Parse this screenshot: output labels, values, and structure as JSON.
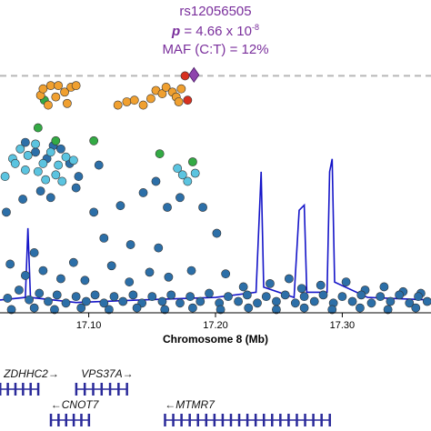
{
  "chart_data": {
    "type": "scatter",
    "title": "",
    "annotation": {
      "snp": "rs12056505",
      "p_label": "p",
      "p_value": "= 4.66 x 10",
      "p_exponent": "-8",
      "maf": "MAF (C:T) = 12%"
    },
    "xlabel": "Chromosome 8 (Mb)",
    "xlim": [
      17.03,
      17.37
    ],
    "xticks": [
      17.1,
      17.2,
      17.3
    ],
    "xtick_labels": [
      "17.10",
      "17.20",
      "17.30"
    ],
    "ylim_neglog10p": [
      0,
      7.9
    ],
    "significance_line_neglog10p": 7.3,
    "colors": {
      "lead": "#8e44ad",
      "red": "#d7301f",
      "orange": "#f0a030",
      "green": "#33aa44",
      "lightblue": "#5bc4e0",
      "darkblue": "#2c6fa8",
      "recomb": "#1515c8",
      "sigline": "#b8b8b8",
      "gene": "#2a2a9a"
    },
    "lead_snp": {
      "x": 17.183,
      "y": 7.33
    },
    "points": {
      "red": [
        [
          17.176,
          7.3
        ],
        [
          17.178,
          6.55
        ]
      ],
      "orange": [
        [
          17.062,
          6.7
        ],
        [
          17.064,
          6.9
        ],
        [
          17.07,
          7.0
        ],
        [
          17.076,
          7.0
        ],
        [
          17.081,
          6.8
        ],
        [
          17.086,
          6.95
        ],
        [
          17.09,
          7.0
        ],
        [
          17.068,
          6.4
        ],
        [
          17.074,
          6.65
        ],
        [
          17.083,
          6.45
        ],
        [
          17.123,
          6.4
        ],
        [
          17.13,
          6.5
        ],
        [
          17.136,
          6.55
        ],
        [
          17.143,
          6.4
        ],
        [
          17.149,
          6.6
        ],
        [
          17.153,
          6.85
        ],
        [
          17.158,
          6.75
        ],
        [
          17.161,
          6.95
        ],
        [
          17.166,
          6.8
        ],
        [
          17.169,
          6.65
        ],
        [
          17.171,
          6.5
        ],
        [
          17.173,
          6.9
        ]
      ],
      "green": [
        [
          17.065,
          6.55
        ],
        [
          17.06,
          5.7
        ],
        [
          17.104,
          5.3
        ],
        [
          17.182,
          4.65
        ],
        [
          17.074,
          5.3
        ],
        [
          17.156,
          4.9
        ]
      ],
      "lightblue": [
        [
          17.04,
          4.75
        ],
        [
          17.046,
          5.05
        ],
        [
          17.052,
          4.85
        ],
        [
          17.058,
          5.2
        ],
        [
          17.064,
          4.6
        ],
        [
          17.07,
          4.95
        ],
        [
          17.076,
          4.55
        ],
        [
          17.082,
          4.8
        ],
        [
          17.088,
          4.7
        ],
        [
          17.034,
          4.2
        ],
        [
          17.042,
          4.6
        ],
        [
          17.05,
          4.4
        ],
        [
          17.066,
          4.1
        ],
        [
          17.074,
          4.25
        ],
        [
          17.079,
          4.05
        ],
        [
          17.06,
          4.35
        ],
        [
          17.17,
          4.45
        ],
        [
          17.174,
          4.25
        ],
        [
          17.178,
          4.05
        ],
        [
          17.184,
          4.3
        ]
      ],
      "darkblue": [
        [
          17.05,
          5.25
        ],
        [
          17.058,
          4.95
        ],
        [
          17.067,
          4.75
        ],
        [
          17.072,
          5.15
        ],
        [
          17.078,
          5.05
        ],
        [
          17.085,
          4.6
        ],
        [
          17.092,
          4.2
        ],
        [
          17.035,
          3.1
        ],
        [
          17.048,
          3.5
        ],
        [
          17.062,
          3.75
        ],
        [
          17.07,
          3.55
        ],
        [
          17.09,
          3.85
        ],
        [
          17.108,
          4.55
        ],
        [
          17.104,
          3.1
        ],
        [
          17.112,
          2.3
        ],
        [
          17.125,
          3.3
        ],
        [
          17.133,
          2.1
        ],
        [
          17.143,
          3.7
        ],
        [
          17.153,
          4.05
        ],
        [
          17.162,
          3.25
        ],
        [
          17.172,
          3.55
        ],
        [
          17.19,
          3.25
        ],
        [
          17.201,
          2.45
        ],
        [
          17.155,
          2.0
        ],
        [
          17.038,
          1.5
        ],
        [
          17.05,
          1.15
        ],
        [
          17.057,
          1.85
        ],
        [
          17.064,
          1.3
        ],
        [
          17.078,
          1.05
        ],
        [
          17.088,
          1.55
        ],
        [
          17.097,
          1.0
        ],
        [
          17.118,
          1.45
        ],
        [
          17.132,
          0.95
        ],
        [
          17.148,
          1.25
        ],
        [
          17.163,
          1.1
        ],
        [
          17.181,
          1.3
        ],
        [
          17.208,
          1.2
        ],
        [
          17.222,
          0.8
        ],
        [
          17.243,
          0.9
        ],
        [
          17.258,
          1.05
        ],
        [
          17.268,
          0.75
        ],
        [
          17.283,
          0.85
        ],
        [
          17.303,
          0.95
        ],
        [
          17.318,
          0.7
        ],
        [
          17.333,
          0.8
        ],
        [
          17.348,
          0.65
        ],
        [
          17.362,
          0.6
        ],
        [
          17.036,
          0.45
        ],
        [
          17.045,
          0.7
        ],
        [
          17.053,
          0.4
        ],
        [
          17.061,
          0.6
        ],
        [
          17.068,
          0.35
        ],
        [
          17.075,
          0.55
        ],
        [
          17.082,
          0.3
        ],
        [
          17.09,
          0.5
        ],
        [
          17.098,
          0.35
        ],
        [
          17.105,
          0.55
        ],
        [
          17.112,
          0.3
        ],
        [
          17.12,
          0.5
        ],
        [
          17.127,
          0.35
        ],
        [
          17.135,
          0.55
        ],
        [
          17.142,
          0.3
        ],
        [
          17.15,
          0.5
        ],
        [
          17.158,
          0.35
        ],
        [
          17.165,
          0.55
        ],
        [
          17.172,
          0.3
        ],
        [
          17.18,
          0.5
        ],
        [
          17.188,
          0.35
        ],
        [
          17.195,
          0.6
        ],
        [
          17.203,
          0.3
        ],
        [
          17.21,
          0.5
        ],
        [
          17.218,
          0.35
        ],
        [
          17.225,
          0.55
        ],
        [
          17.233,
          0.3
        ],
        [
          17.24,
          0.5
        ],
        [
          17.248,
          0.35
        ],
        [
          17.255,
          0.55
        ],
        [
          17.263,
          0.3
        ],
        [
          17.27,
          0.5
        ],
        [
          17.278,
          0.35
        ],
        [
          17.285,
          0.55
        ],
        [
          17.293,
          0.3
        ],
        [
          17.3,
          0.5
        ],
        [
          17.308,
          0.35
        ],
        [
          17.315,
          0.55
        ],
        [
          17.323,
          0.3
        ],
        [
          17.33,
          0.5
        ],
        [
          17.338,
          0.35
        ],
        [
          17.345,
          0.55
        ],
        [
          17.353,
          0.3
        ],
        [
          17.36,
          0.5
        ],
        [
          17.367,
          0.35
        ],
        [
          17.039,
          0.1
        ],
        [
          17.057,
          0.15
        ],
        [
          17.073,
          0.1
        ],
        [
          17.094,
          0.15
        ],
        [
          17.116,
          0.1
        ],
        [
          17.138,
          0.15
        ],
        [
          17.16,
          0.1
        ],
        [
          17.182,
          0.15
        ],
        [
          17.204,
          0.1
        ],
        [
          17.226,
          0.15
        ],
        [
          17.248,
          0.1
        ],
        [
          17.27,
          0.15
        ],
        [
          17.292,
          0.1
        ],
        [
          17.314,
          0.15
        ],
        [
          17.336,
          0.1
        ],
        [
          17.358,
          0.15
        ]
      ]
    },
    "recombination_rate_series": [
      [
        17.03,
        0.05
      ],
      [
        17.05,
        0.06
      ],
      [
        17.052,
        0.33
      ],
      [
        17.054,
        0.06
      ],
      [
        17.09,
        0.04
      ],
      [
        17.14,
        0.05
      ],
      [
        17.2,
        0.06
      ],
      [
        17.232,
        0.08
      ],
      [
        17.236,
        0.55
      ],
      [
        17.238,
        0.1
      ],
      [
        17.262,
        0.06
      ],
      [
        17.266,
        0.4
      ],
      [
        17.27,
        0.42
      ],
      [
        17.272,
        0.08
      ],
      [
        17.288,
        0.08
      ],
      [
        17.29,
        0.55
      ],
      [
        17.292,
        0.6
      ],
      [
        17.294,
        0.12
      ],
      [
        17.32,
        0.06
      ],
      [
        17.37,
        0.05
      ]
    ],
    "genes": [
      {
        "label": "ZDHHC2→",
        "start": 17.03,
        "end": 17.06,
        "row": 1
      },
      {
        "label": "VPS37A→",
        "start": 17.09,
        "end": 17.13,
        "row": 1
      },
      {
        "label": "←CNOT7",
        "start": 17.07,
        "end": 17.1,
        "row": 2
      },
      {
        "label": "←MTMR7",
        "start": 17.16,
        "end": 17.29,
        "row": 2
      }
    ]
  }
}
